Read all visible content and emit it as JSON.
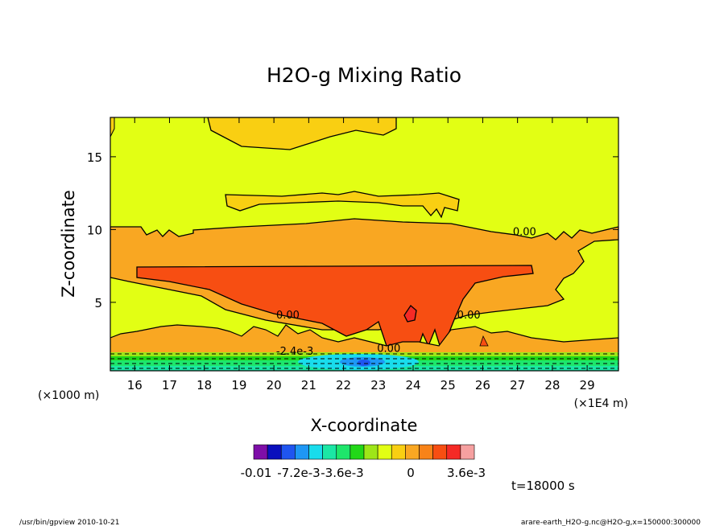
{
  "chart_data": {
    "type": "heatmap",
    "title": "H2O-g Mixing Ratio",
    "xlabel": "X-coordinate",
    "ylabel": "Z-coordinate",
    "x_units_left": "(×1000 m)",
    "x_units_right": "(×1E4 m)",
    "xlim": [
      15.3,
      29.9
    ],
    "ylim": [
      0.3,
      17.7
    ],
    "x_ticks": [
      16,
      17,
      18,
      19,
      20,
      21,
      22,
      23,
      24,
      25,
      26,
      27,
      28,
      29
    ],
    "y_ticks": [
      5,
      10,
      15
    ],
    "grid": false,
    "contour_labels": [
      {
        "text": "0.00",
        "x": 27.2,
        "y": 9.6
      },
      {
        "text": "0.00",
        "x": 20.4,
        "y": 3.9
      },
      {
        "text": "0.00",
        "x": 25.6,
        "y": 3.9
      },
      {
        "text": "-2.4e-3",
        "x": 20.6,
        "y": 1.4
      },
      {
        "text": "0.00",
        "x": 23.3,
        "y": 1.6
      }
    ],
    "colorbar": {
      "colors": [
        "#7e0ea8",
        "#0a0fbd",
        "#1f55f0",
        "#1e97f5",
        "#19dcec",
        "#1be7a5",
        "#1ee66b",
        "#22d818",
        "#9ee618",
        "#e2ff14",
        "#f9cf12",
        "#f9a722",
        "#f88318",
        "#f74e12",
        "#f52a26",
        "#f6a0a0"
      ],
      "tick_labels": [
        "-0.01",
        "-7.2e-3",
        "-3.6e-3",
        "0",
        "3.6e-3"
      ]
    },
    "time_label": "t=18000 s"
  },
  "footer": {
    "left": "/usr/bin/gpview  2010-10-21",
    "right": "arare-earth_H2O-g.nc@H2O-g,x=150000:300000"
  }
}
